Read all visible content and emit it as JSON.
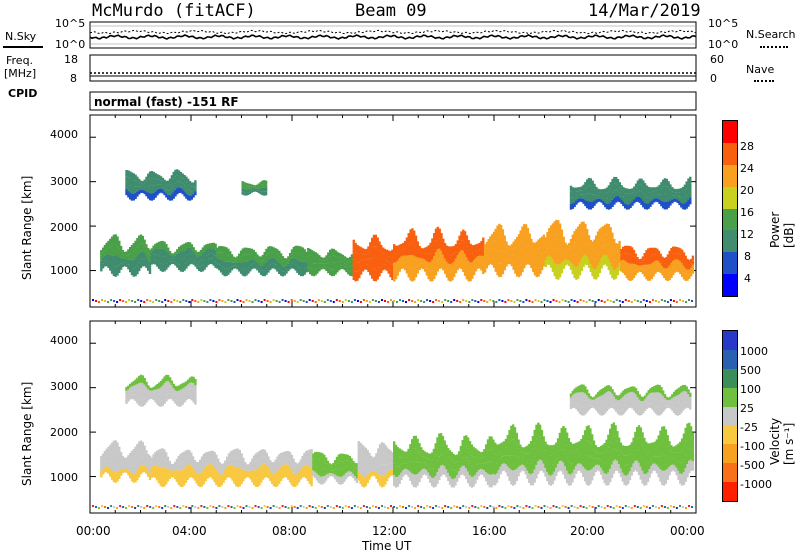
{
  "header": {
    "station": "McMurdo (fitACF)",
    "beam": "Beam 09",
    "date": "14/Mar/2019"
  },
  "top_panel": {
    "left_label": "N.Sky",
    "right_label": "N.Search",
    "left_ticks": [
      "10^5",
      "10^0"
    ],
    "right_ticks": [
      "10^5",
      "10^0"
    ]
  },
  "freq_panel": {
    "left_label_1": "Freq.",
    "left_label_2": "[MHz]",
    "right_label": "Nave",
    "left_ticks": [
      "18",
      "8"
    ],
    "right_ticks": [
      "60",
      "0"
    ]
  },
  "cpid": {
    "label": "CPID",
    "value": "normal (fast) -151 RF"
  },
  "power_panel": {
    "ylabel": "Slant Range [km]",
    "yticks": [
      "4000",
      "3000",
      "2000",
      "1000"
    ],
    "colorbar_label": "Power [dB]",
    "colorbar_ticks": [
      "28",
      "24",
      "20",
      "16",
      "12",
      "8",
      "4"
    ],
    "colorbar_colors": [
      "#0000ff",
      "#2050c8",
      "#3f8c6e",
      "#4aa048",
      "#c8d020",
      "#f8a020",
      "#f86010",
      "#ff0000"
    ]
  },
  "velocity_panel": {
    "ylabel": "Slant Range [km]",
    "yticks": [
      "4000",
      "3000",
      "2000",
      "1000"
    ],
    "colorbar_label": "Velocity [m s⁻¹]",
    "colorbar_ticks": [
      "1000",
      "500",
      "100",
      "25",
      "-25",
      "-100",
      "-500",
      "-1000"
    ],
    "colorbar_colors": [
      "#ff0000",
      "#f85010",
      "#f88018",
      "#f8b830",
      "#c0c0c0",
      "#50c030",
      "#3a8e5a",
      "#2a5ab8",
      "#1030d0"
    ]
  },
  "xaxis": {
    "label": "Time UT",
    "ticks": [
      "00:00",
      "04:00",
      "08:00",
      "12:00",
      "16:00",
      "20:00",
      "00:00"
    ]
  },
  "chart_data": [
    {
      "type": "heatmap",
      "title": "",
      "xlabel": "Time UT",
      "ylabel": "Slant Range [km]",
      "xlim": [
        0,
        24
      ],
      "ylim": [
        180,
        4500
      ],
      "colorbar": "Power [dB]",
      "clim": [
        0,
        32
      ],
      "segments": [
        {
          "t0": 0.4,
          "t1": 2.4,
          "r0": 900,
          "r1": 1700,
          "v": 12
        },
        {
          "t0": 2.4,
          "t1": 5.0,
          "r0": 1000,
          "r1": 1600,
          "v": 11
        },
        {
          "t0": 5.0,
          "t1": 8.6,
          "r0": 900,
          "r1": 1500,
          "v": 12
        },
        {
          "t0": 8.6,
          "t1": 10.4,
          "r0": 900,
          "r1": 1450,
          "v": 14
        },
        {
          "t0": 10.4,
          "t1": 12.0,
          "r0": 800,
          "r1": 1700,
          "v": 26
        },
        {
          "t0": 12.0,
          "t1": 15.6,
          "r0": 800,
          "r1": 1800,
          "v": 24
        },
        {
          "t0": 15.6,
          "t1": 18.0,
          "r0": 900,
          "r1": 1900,
          "v": 22
        },
        {
          "t0": 18.0,
          "t1": 21.0,
          "r0": 850,
          "r1": 2000,
          "v": 21
        },
        {
          "t0": 21.0,
          "t1": 23.9,
          "r0": 800,
          "r1": 1500,
          "v": 24
        },
        {
          "t0": 1.4,
          "t1": 4.2,
          "r0": 2600,
          "r1": 3200,
          "v": 9
        },
        {
          "t0": 6.0,
          "t1": 7.0,
          "r0": 2700,
          "r1": 3000,
          "v": 12
        },
        {
          "t0": 19.0,
          "t1": 23.8,
          "r0": 2400,
          "r1": 3000,
          "v": 9
        }
      ]
    },
    {
      "type": "heatmap",
      "title": "",
      "xlabel": "Time UT",
      "ylabel": "Slant Range [km]",
      "xlim": [
        0,
        24
      ],
      "ylim": [
        180,
        4500
      ],
      "colorbar": "Velocity [m s⁻¹]",
      "clim": [
        -1000,
        1000
      ],
      "segments": [
        {
          "t0": 0.4,
          "t1": 2.4,
          "r0": 900,
          "r1": 1700,
          "v": -60
        },
        {
          "t0": 2.4,
          "t1": 8.8,
          "r0": 800,
          "r1": 1550,
          "v": -90
        },
        {
          "t0": 8.8,
          "t1": 10.6,
          "r0": 850,
          "r1": 1500,
          "v": 200
        },
        {
          "t0": 10.6,
          "t1": 12.0,
          "r0": 800,
          "r1": 1700,
          "v": -70
        },
        {
          "t0": 12.0,
          "t1": 16.0,
          "r0": 800,
          "r1": 1800,
          "v": 200
        },
        {
          "t0": 16.0,
          "t1": 23.9,
          "r0": 850,
          "r1": 2000,
          "v": 200
        },
        {
          "t0": 1.4,
          "t1": 4.2,
          "r0": 2600,
          "r1": 3200,
          "v": 10
        },
        {
          "t0": 19.0,
          "t1": 23.8,
          "r0": 2400,
          "r1": 3000,
          "v": 10
        }
      ]
    }
  ]
}
